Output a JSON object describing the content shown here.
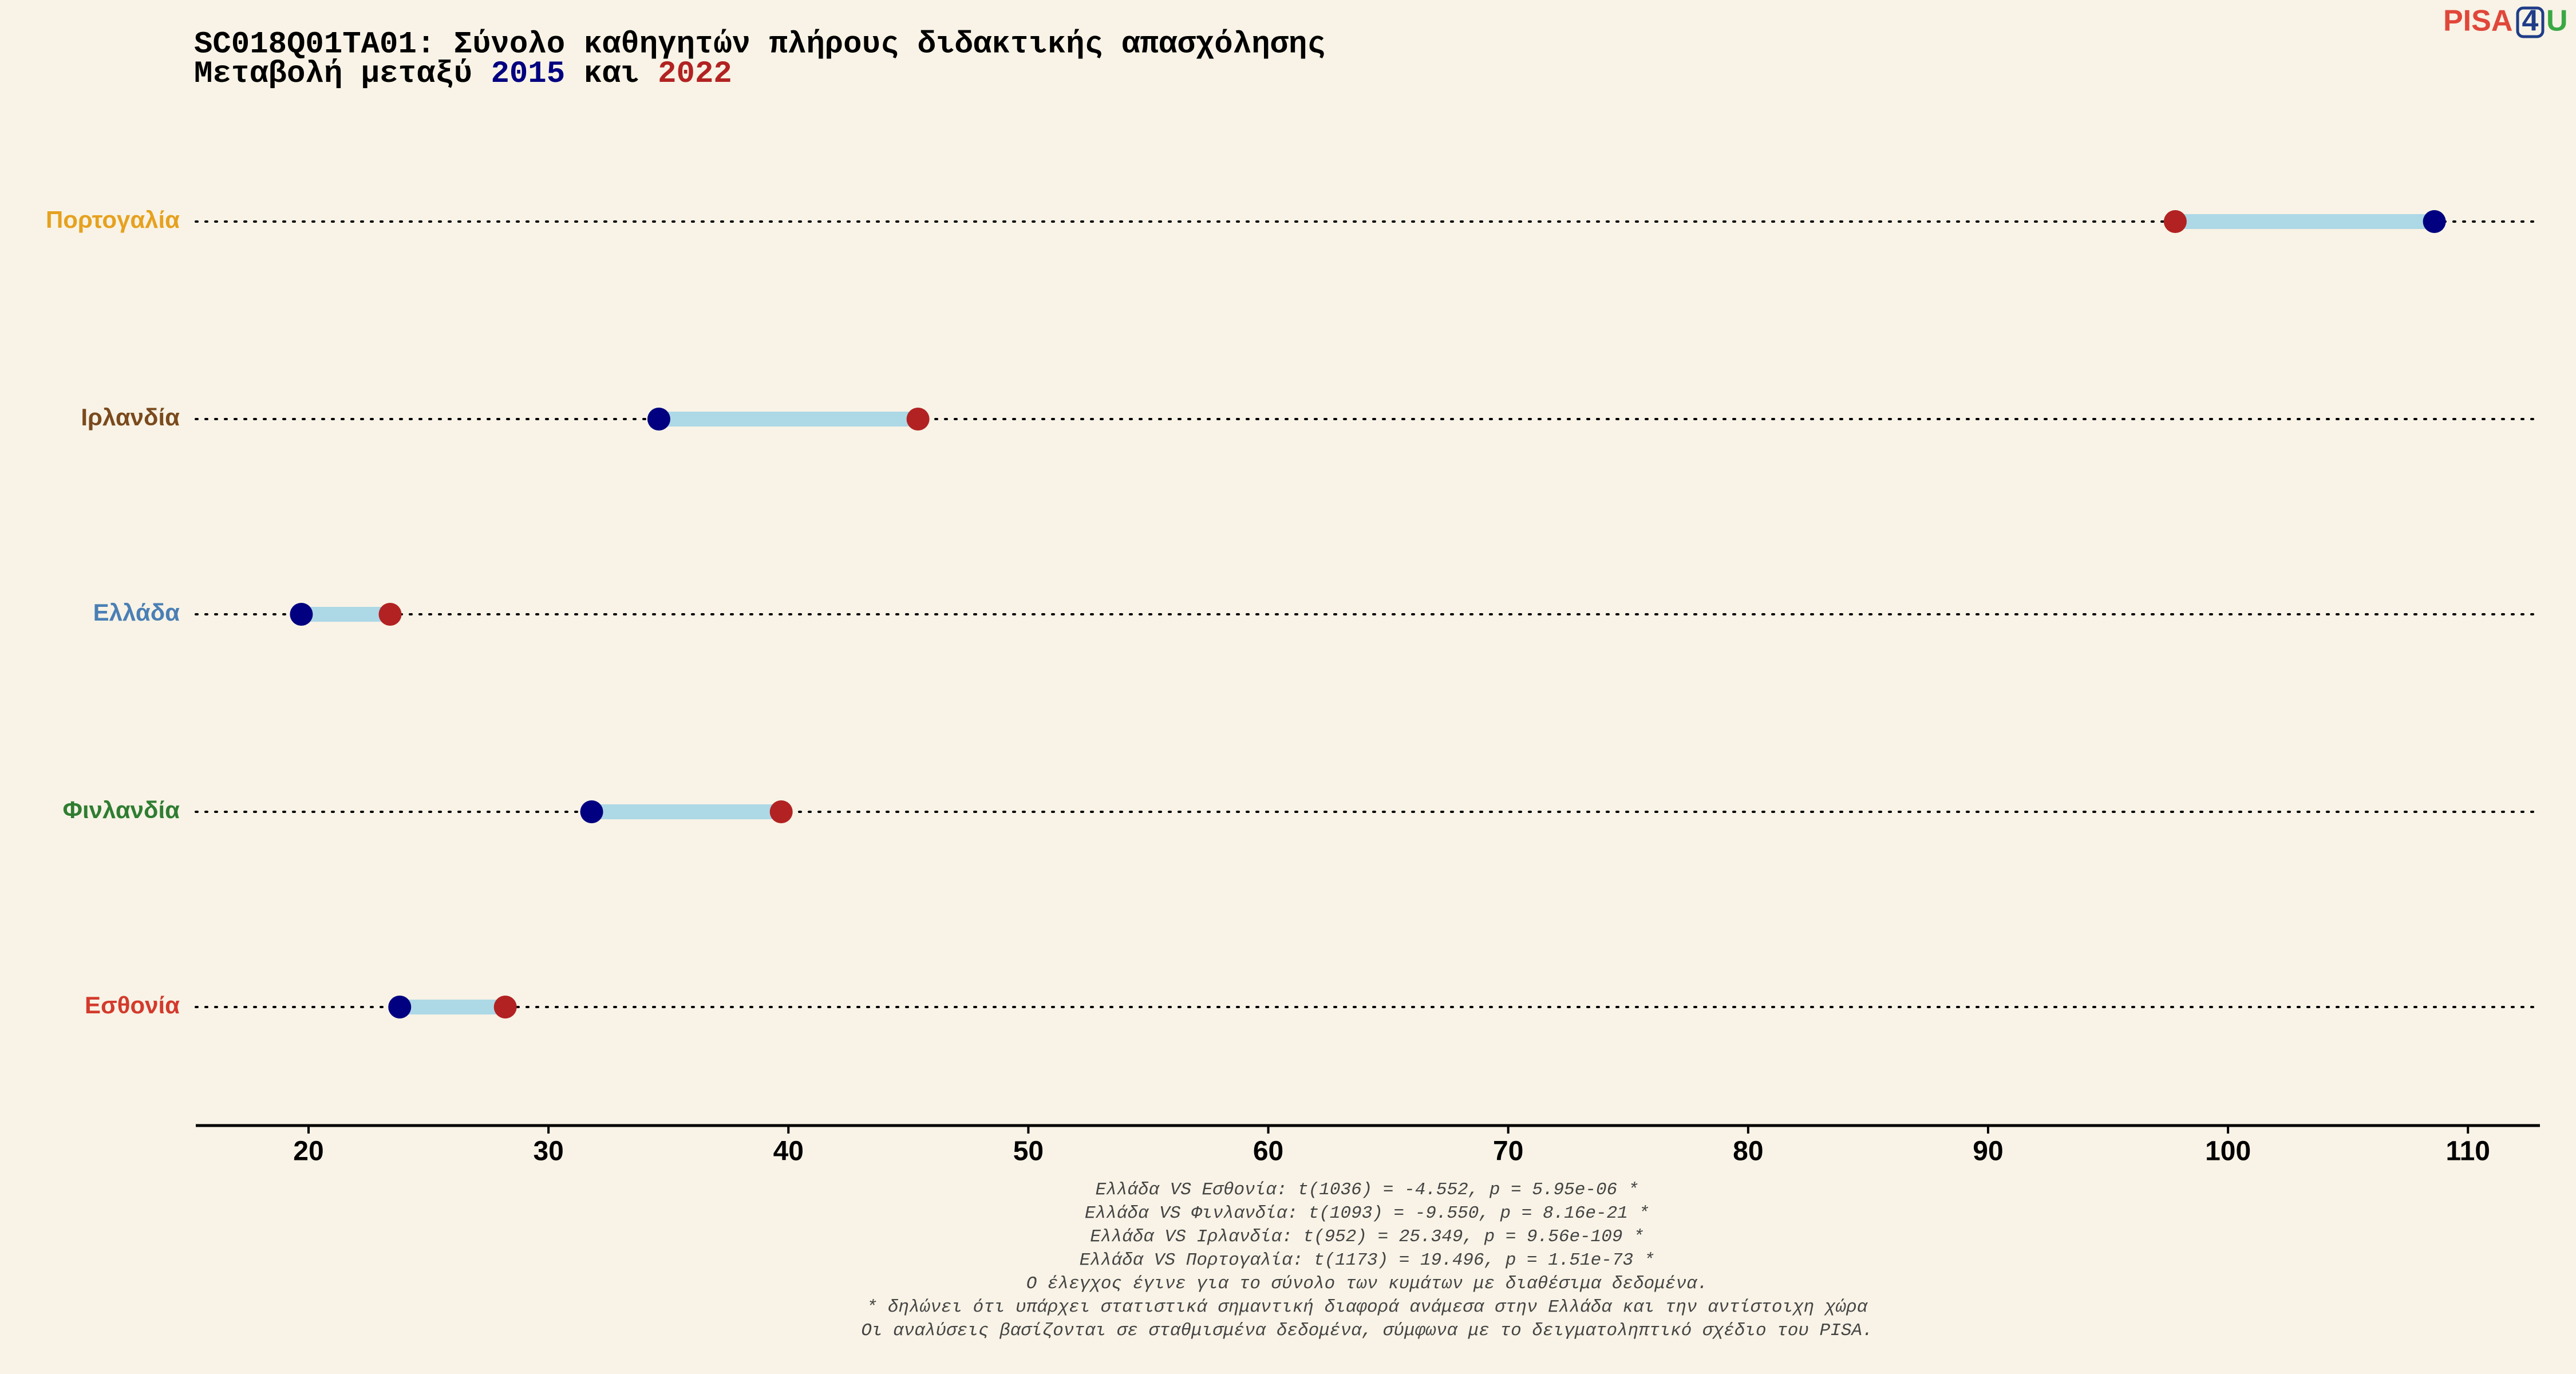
{
  "chart_data": {
    "type": "dumbbell",
    "title": "SC018Q01TA01: Σύνολο καθηγητών πλήρους διδακτικής απασχόλησης",
    "subtitle_parts": [
      "Μεταβολή μεταξύ",
      "και"
    ],
    "categories": [
      "Πορτογαλία",
      "Ιρλανδία",
      "Ελλάδα",
      "Φινλανδία",
      "Εσθονία"
    ],
    "category_colors": [
      "#e6a11f",
      "#7a4a1e",
      "#4a7fb5",
      "#2f7d32",
      "#d33a2c"
    ],
    "series": [
      {
        "name": "2015",
        "color": "#000080",
        "values": [
          108.6,
          34.6,
          19.7,
          31.8,
          23.8
        ]
      },
      {
        "name": "2022",
        "color": "#b22222",
        "values": [
          97.8,
          45.4,
          23.4,
          39.7,
          28.2
        ]
      }
    ],
    "connector_color": "#add8e6",
    "xlim": [
      15.3,
      113
    ],
    "xticks": [
      20,
      30,
      40,
      50,
      60,
      70,
      80,
      90,
      100,
      110
    ],
    "notes": [
      "Ελλάδα VS Εσθονία: t(1036) = -4.552, p = 5.95e-06 *",
      "Ελλάδα VS Φινλανδία: t(1093) = -9.550, p = 8.16e-21 *",
      "Ελλάδα VS Ιρλανδία: t(952) = 25.349, p = 9.56e-109 *",
      "Ελλάδα VS Πορτογαλία: t(1173) = 19.496, p = 1.51e-73 *",
      "Ο έλεγχος έγινε για το σύνολο των κυμάτων με διαθέσιμα δεδομένα.",
      "* δηλώνει ότι υπάρχει στατιστικά σημαντική διαφορά ανάμεσα στην Ελλάδα και την αντίστοιχη χώρα",
      "Οι αναλύσεις βασίζονται σε σταθμισμένα δεδομένα, σύμφωνα με το δειγματοληπτικό σχέδιο του PISA."
    ],
    "logo": [
      "PISA",
      "4",
      "U"
    ]
  }
}
